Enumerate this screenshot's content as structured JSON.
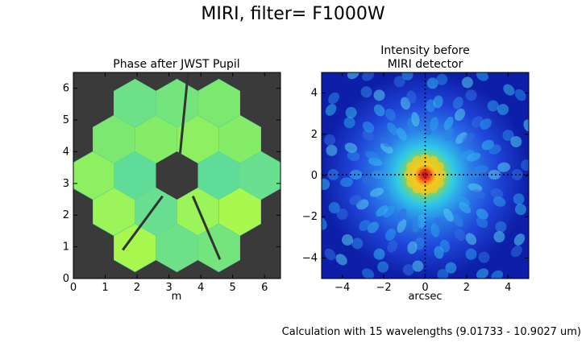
{
  "suptitle": "MIRI, filter= F1000W",
  "footer_note": "Calculation with 15 wavelengths (9.01733 - 10.9027 um)",
  "colors": {
    "background": "#3a3a3a",
    "crosshair": "#000000",
    "peak": "#e8281c"
  },
  "chart_data": [
    {
      "type": "heatmap",
      "title": "Phase after JWST Pupil",
      "xlabel": "m",
      "ylabel": "",
      "xlim": [
        0,
        6.5
      ],
      "ylim": [
        0,
        6.5
      ],
      "x_ticks": [
        0,
        1,
        2,
        3,
        4,
        5,
        6
      ],
      "y_ticks": [
        0,
        1,
        2,
        3,
        4,
        5,
        6
      ],
      "grid": false,
      "colormap": "jet",
      "description_values": {
        "segments": 18,
        "obscured_center": true,
        "support_struts": 3
      }
    },
    {
      "type": "heatmap",
      "title": "Intensity before\nMIRI detector",
      "title_lines": [
        "Intensity before",
        "MIRI detector"
      ],
      "xlabel": "arcsec",
      "ylabel": "",
      "xlim": [
        -5,
        5
      ],
      "ylim": [
        -5,
        5
      ],
      "x_ticks": [
        -4,
        -2,
        0,
        2,
        4
      ],
      "y_ticks": [
        -4,
        -2,
        0,
        2,
        4
      ],
      "grid": false,
      "colormap": "jet",
      "crosshair": {
        "x": 0,
        "y": 0
      }
    }
  ]
}
